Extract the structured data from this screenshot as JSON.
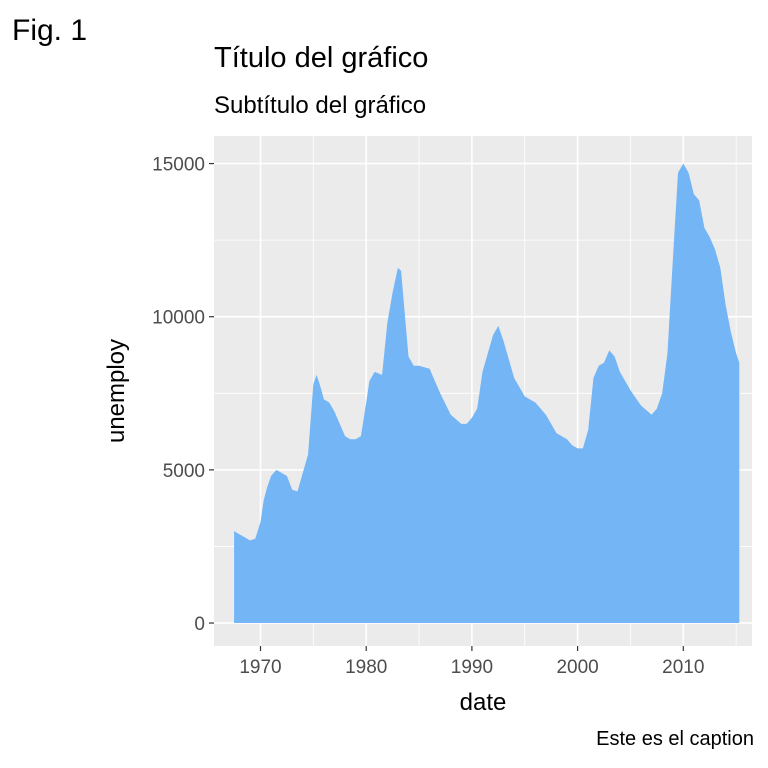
{
  "figure_tag": "Fig. 1",
  "caption": "Este es el caption",
  "chart_data": {
    "type": "area",
    "title": "Título del gráfico",
    "subtitle": "Subtítulo del gráfico",
    "xlabel": "date",
    "ylabel": "unemploy",
    "xlim": [
      1965.6,
      2016.5
    ],
    "ylim": [
      -750,
      15900
    ],
    "x_ticks": [
      1970,
      1980,
      1990,
      2000,
      2010
    ],
    "y_ticks": [
      0,
      5000,
      10000,
      15000
    ],
    "x_tick_labels": [
      "1970",
      "1980",
      "1990",
      "2000",
      "2010"
    ],
    "y_tick_labels": [
      "0",
      "5000",
      "10000",
      "15000"
    ],
    "grid": true,
    "colors": {
      "fill": "#74b5f5",
      "panel": "#ebebeb",
      "grid": "#ffffff"
    },
    "x": [
      1967.5,
      1968.0,
      1968.5,
      1969.0,
      1969.5,
      1970.0,
      1970.3,
      1970.6,
      1971.0,
      1971.5,
      1972.0,
      1972.5,
      1973.0,
      1973.5,
      1974.0,
      1974.5,
      1975.0,
      1975.3,
      1975.6,
      1976.0,
      1976.5,
      1977.0,
      1977.5,
      1978.0,
      1978.5,
      1979.0,
      1979.5,
      1980.0,
      1980.3,
      1980.8,
      1981.5,
      1982.0,
      1982.5,
      1983.0,
      1983.3,
      1983.7,
      1984.0,
      1984.5,
      1985.0,
      1986.0,
      1987.0,
      1988.0,
      1989.0,
      1989.5,
      1990.0,
      1990.5,
      1991.0,
      1991.5,
      1992.0,
      1992.5,
      1993.0,
      1994.0,
      1995.0,
      1996.0,
      1997.0,
      1998.0,
      1999.0,
      1999.5,
      2000.0,
      2000.5,
      2001.0,
      2001.5,
      2002.0,
      2002.5,
      2003.0,
      2003.5,
      2004.0,
      2005.0,
      2006.0,
      2007.0,
      2007.5,
      2008.0,
      2008.5,
      2009.0,
      2009.5,
      2010.0,
      2010.5,
      2011.0,
      2011.5,
      2012.0,
      2012.5,
      2013.0,
      2013.5,
      2014.0,
      2014.5,
      2015.0,
      2015.3
    ],
    "y": [
      3000,
      2900,
      2800,
      2700,
      2750,
      3300,
      4000,
      4400,
      4800,
      5000,
      4900,
      4800,
      4350,
      4300,
      4900,
      5500,
      7800,
      8100,
      7800,
      7300,
      7200,
      6900,
      6500,
      6100,
      6000,
      6000,
      6100,
      7200,
      7900,
      8200,
      8100,
      9800,
      10800,
      11600,
      11500,
      9900,
      8700,
      8400,
      8400,
      8300,
      7500,
      6800,
      6500,
      6500,
      6700,
      7000,
      8200,
      8800,
      9400,
      9700,
      9200,
      8000,
      7400,
      7200,
      6800,
      6200,
      6000,
      5800,
      5700,
      5700,
      6300,
      8000,
      8400,
      8500,
      8900,
      8700,
      8200,
      7600,
      7100,
      6800,
      7000,
      7500,
      8800,
      11800,
      14700,
      15000,
      14700,
      14000,
      13800,
      12900,
      12600,
      12200,
      11600,
      10400,
      9500,
      8800,
      8500
    ]
  }
}
